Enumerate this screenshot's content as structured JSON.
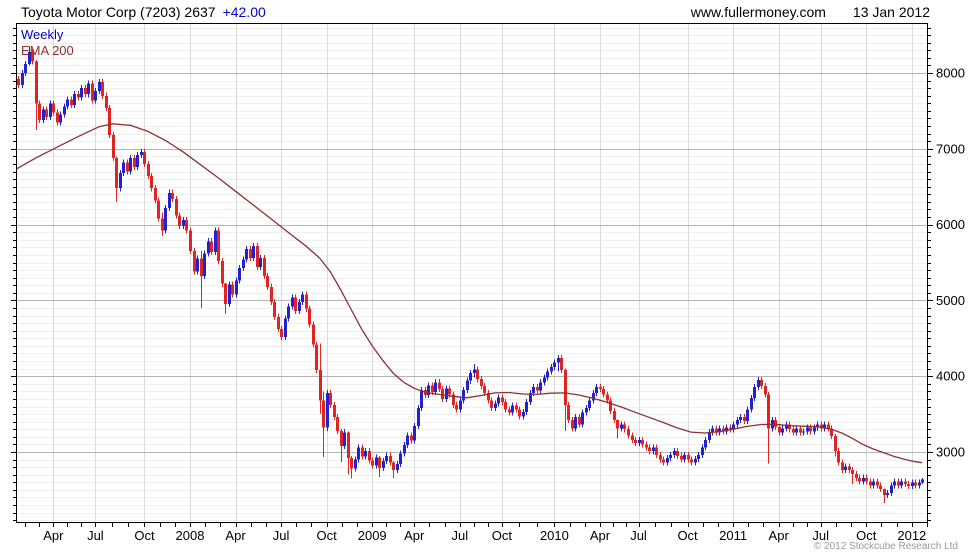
{
  "header": {
    "title_main": "Toyota Motor Corp (7203) 2637",
    "title_change": "+42.00",
    "website": "www.fullermoney.com",
    "date": "13 Jan 2012"
  },
  "legend": {
    "series1": "Weekly",
    "series2": "EMA 200"
  },
  "footer": {
    "copyright": "© 2012 Stockcube Research Ltd"
  },
  "colors": {
    "up_candle": "#2121d4",
    "down_candle": "#e32222",
    "ema_line": "#8e3030",
    "weekly_label": "#0000cf",
    "ema_label": "#8e3030",
    "change_text": "#0000cf",
    "grid_minor": "#efefef",
    "grid_major": "#b5b5b5",
    "grid_vertical": "#d9d9d9",
    "axis_text": "#000000",
    "copyright_text": "#9a9a9a",
    "border": "#000000"
  },
  "chart_data": {
    "type": "candlestick",
    "title": "Toyota Motor Corp (7203) weekly candles with 200-day EMA, 2007 - Jan 2012",
    "legend_position": "top-left",
    "grid": "on",
    "y_axis": {
      "side": "right",
      "min": 2063,
      "max": 8660,
      "major_tick_step": 1000,
      "minor_tick_step": 100,
      "tick_labels": [
        8000,
        7000,
        6000,
        5000,
        4000,
        3000
      ]
    },
    "x_axis": {
      "weeks_total": 260,
      "labels": [
        {
          "text": "Apr",
          "week": 11
        },
        {
          "text": "Jul",
          "week": 23
        },
        {
          "text": "Oct",
          "week": 37
        },
        {
          "text": "2008",
          "week": 50
        },
        {
          "text": "Apr",
          "week": 63
        },
        {
          "text": "Jul",
          "week": 76
        },
        {
          "text": "Oct",
          "week": 89
        },
        {
          "text": "2009",
          "week": 102
        },
        {
          "text": "Apr",
          "week": 114
        },
        {
          "text": "Jul",
          "week": 127
        },
        {
          "text": "Oct",
          "week": 139
        },
        {
          "text": "2010",
          "week": 154
        },
        {
          "text": "Apr",
          "week": 167
        },
        {
          "text": "Jul",
          "week": 178
        },
        {
          "text": "Oct",
          "week": 192
        },
        {
          "text": "2011",
          "week": 205
        },
        {
          "text": "Apr",
          "week": 218
        },
        {
          "text": "Jul",
          "week": 230
        },
        {
          "text": "Oct",
          "week": 243
        },
        {
          "text": "2012",
          "week": 256
        }
      ]
    },
    "first_open": 7880,
    "closes": [
      7920,
      7840,
      8000,
      8120,
      8280,
      8150,
      7600,
      7380,
      7520,
      7420,
      7600,
      7480,
      7350,
      7450,
      7560,
      7650,
      7580,
      7720,
      7680,
      7800,
      7720,
      7860,
      7640,
      7760,
      7880,
      7700,
      7540,
      7180,
      6880,
      6480,
      6680,
      6820,
      6700,
      6880,
      6760,
      6920,
      6960,
      6800,
      6640,
      6480,
      6320,
      6080,
      5920,
      6220,
      6420,
      6340,
      6120,
      5980,
      6060,
      5920,
      5650,
      5380,
      5550,
      5320,
      5620,
      5780,
      5640,
      5920,
      5520,
      5220,
      4950,
      5210,
      5080,
      5260,
      5430,
      5540,
      5680,
      5560,
      5720,
      5440,
      5560,
      5320,
      5180,
      4980,
      4780,
      4620,
      4520,
      4760,
      4920,
      5040,
      4860,
      4980,
      5080,
      4890,
      4680,
      4420,
      4080,
      3680,
      3320,
      3780,
      3620,
      3460,
      3280,
      3080,
      3260,
      2920,
      2780,
      2900,
      3060,
      2940,
      3010,
      2890,
      2820,
      2930,
      2790,
      2880,
      2950,
      2860,
      2760,
      2840,
      2980,
      3090,
      3220,
      3150,
      3340,
      3580,
      3820,
      3750,
      3880,
      3790,
      3920,
      3830,
      3700,
      3840,
      3760,
      3620,
      3560,
      3680,
      3820,
      3940,
      4040,
      4090,
      3960,
      3870,
      3780,
      3680,
      3580,
      3640,
      3720,
      3660,
      3560,
      3520,
      3610,
      3560,
      3470,
      3530,
      3660,
      3780,
      3860,
      3810,
      3920,
      3980,
      4060,
      4120,
      4180,
      4240,
      4080,
      3620,
      3420,
      3310,
      3460,
      3360,
      3520,
      3580,
      3680,
      3780,
      3860,
      3830,
      3760,
      3680,
      3540,
      3420,
      3310,
      3360,
      3300,
      3220,
      3160,
      3120,
      3160,
      3100,
      3060,
      3010,
      3060,
      2960,
      2900,
      2860,
      2920,
      2960,
      3010,
      2950,
      2900,
      2960,
      2900,
      2860,
      2910,
      2960,
      3060,
      3160,
      3260,
      3310,
      3260,
      3310,
      3270,
      3320,
      3300,
      3360,
      3420,
      3460,
      3410,
      3560,
      3710,
      3860,
      3950,
      3870,
      3760,
      3310,
      3420,
      3330,
      3260,
      3310,
      3360,
      3300,
      3260,
      3310,
      3260,
      3270,
      3320,
      3270,
      3320,
      3360,
      3310,
      3360,
      3310,
      3210,
      3010,
      2860,
      2760,
      2810,
      2760,
      2710,
      2660,
      2610,
      2660,
      2610,
      2560,
      2610,
      2560,
      2510,
      2430,
      2460,
      2560,
      2610,
      2560,
      2610,
      2580,
      2550,
      2600,
      2560,
      2595,
      2637
    ],
    "wick_default": 40,
    "wick_overrides": {
      "4": [
        8350,
        8100
      ],
      "6": [
        8170,
        7250
      ],
      "29": [
        6900,
        6300
      ],
      "42": [
        6160,
        5850
      ],
      "53": [
        5650,
        4900
      ],
      "60": [
        5230,
        4820
      ],
      "87": [
        4430,
        3500
      ],
      "88": [
        3800,
        2935
      ],
      "93": [
        3300,
        2870
      ],
      "95": [
        3270,
        2700
      ],
      "96": [
        2950,
        2650
      ],
      "104": [
        2950,
        2670
      ],
      "108": [
        2880,
        2655
      ],
      "131": [
        4160,
        3980
      ],
      "155": [
        4280,
        4060
      ],
      "157": [
        4100,
        3280
      ],
      "172": [
        3430,
        3180
      ],
      "215": [
        3790,
        2850
      ],
      "234": [
        3240,
        2940
      ],
      "239": [
        2800,
        2580
      ],
      "248": [
        2520,
        2330
      ],
      "259": [
        2660,
        2580
      ]
    },
    "ema": {
      "name": "EMA 200",
      "anchors": [
        [
          0,
          6720
        ],
        [
          6,
          6880
        ],
        [
          12,
          7020
        ],
        [
          18,
          7160
        ],
        [
          24,
          7290
        ],
        [
          28,
          7330
        ],
        [
          33,
          7310
        ],
        [
          38,
          7230
        ],
        [
          43,
          7110
        ],
        [
          48,
          6960
        ],
        [
          53,
          6790
        ],
        [
          58,
          6620
        ],
        [
          63,
          6440
        ],
        [
          68,
          6260
        ],
        [
          73,
          6080
        ],
        [
          78,
          5900
        ],
        [
          83,
          5720
        ],
        [
          87,
          5560
        ],
        [
          90,
          5380
        ],
        [
          93,
          5140
        ],
        [
          96,
          4880
        ],
        [
          99,
          4620
        ],
        [
          102,
          4400
        ],
        [
          105,
          4210
        ],
        [
          108,
          4040
        ],
        [
          111,
          3920
        ],
        [
          114,
          3840
        ],
        [
          117,
          3790
        ],
        [
          121,
          3760
        ],
        [
          125,
          3735
        ],
        [
          129,
          3715
        ],
        [
          133,
          3745
        ],
        [
          137,
          3780
        ],
        [
          141,
          3785
        ],
        [
          145,
          3765
        ],
        [
          149,
          3760
        ],
        [
          153,
          3775
        ],
        [
          157,
          3780
        ],
        [
          161,
          3752
        ],
        [
          165,
          3710
        ],
        [
          169,
          3655
        ],
        [
          173,
          3595
        ],
        [
          177,
          3525
        ],
        [
          181,
          3458
        ],
        [
          185,
          3390
        ],
        [
          189,
          3318
        ],
        [
          193,
          3262
        ],
        [
          197,
          3250
        ],
        [
          201,
          3268
        ],
        [
          205,
          3300
        ],
        [
          209,
          3338
        ],
        [
          213,
          3362
        ],
        [
          217,
          3365
        ],
        [
          221,
          3348
        ],
        [
          225,
          3340
        ],
        [
          229,
          3333
        ],
        [
          233,
          3300
        ],
        [
          236,
          3250
        ],
        [
          239,
          3180
        ],
        [
          242,
          3100
        ],
        [
          245,
          3040
        ],
        [
          248,
          2990
        ],
        [
          251,
          2940
        ],
        [
          254,
          2902
        ],
        [
          257,
          2872
        ],
        [
          259,
          2858
        ]
      ]
    }
  }
}
